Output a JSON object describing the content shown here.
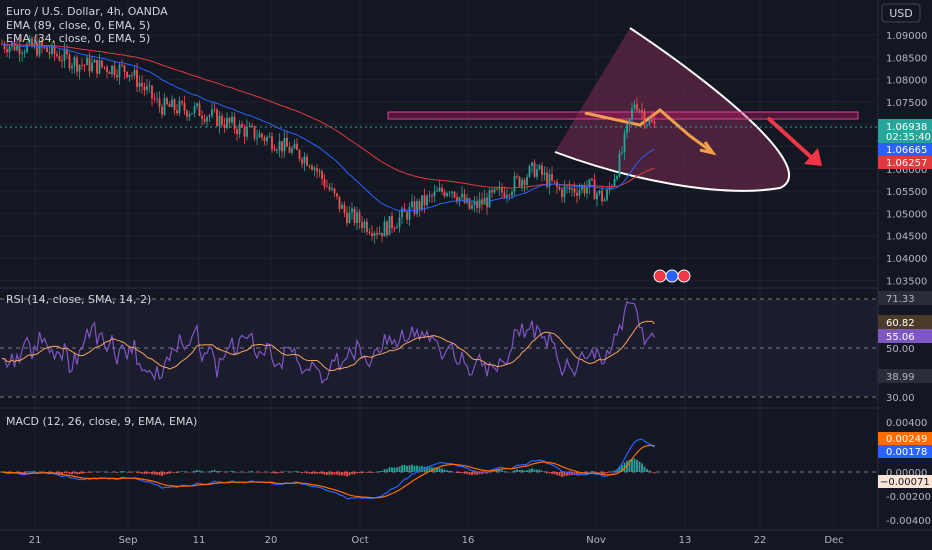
{
  "colors": {
    "background": "#131722",
    "grid": "#1e222d",
    "candle_up": "#26a69a",
    "candle_down": "#ef5350",
    "ema_89": "#e0393e",
    "ema_34": "#2962ff",
    "rsi_line": "#7e57c2",
    "rsi_ma": "#f7a35c",
    "macd_line": "#2962ff",
    "signal_line": "#ff6d00",
    "zone": "#c2185b",
    "arrow_orange": "#f0a04b",
    "arrow_red": "#f23645"
  },
  "header": {
    "symbol": "Euro / U.S. Dollar, 4h, OANDA",
    "ema89": "EMA (89, close, 0, EMA, 5)",
    "ema34": "EMA (34, close, 0, EMA, 5)",
    "currency_button": "USD"
  },
  "price_axis": {
    "ticks": [
      "1.09000",
      "1.08500",
      "1.08000",
      "1.07500",
      "1.07000",
      "1.06500",
      "1.06000",
      "1.05500",
      "1.05000",
      "1.04500",
      "1.04000",
      "1.03500"
    ],
    "last_price": "1.06938",
    "countdown": "02:35:40",
    "ema34_value": "1.06665",
    "ema89_value": "1.06257"
  },
  "rsi_panel": {
    "title": "RSI (14, close, SMA, 14, 2)",
    "ticks": [
      "71.33",
      "50.00",
      "38.99",
      "30.00"
    ],
    "rsi_ma_value": "60.82",
    "rsi_value": "55.06"
  },
  "macd_panel": {
    "title": "MACD (12, 26, close, 9, EMA, EMA)",
    "ticks": [
      "0.00400",
      "0.00000",
      "-0.00200",
      "-0.00400"
    ],
    "signal_value": "0.00249",
    "macd_value": "0.00178",
    "hist_value": "−0.00071"
  },
  "time_axis": {
    "labels": [
      "21",
      "Sep",
      "11",
      "20",
      "Oct",
      "16",
      "Nov",
      "13",
      "22",
      "Dec"
    ]
  },
  "chart_data": [
    {
      "type": "candlestick",
      "title": "Euro / U.S. Dollar, 4h, OANDA",
      "ylim": [
        1.033,
        1.095
      ],
      "x_labels": [
        "21",
        "Sep",
        "11",
        "20",
        "Oct",
        "16",
        "Nov",
        "13",
        "22",
        "Dec"
      ],
      "close_path": [
        {
          "x": "21",
          "y": 1.088
        },
        {
          "x": "Sep",
          "y": 1.082
        },
        {
          "x": "11",
          "y": 1.073
        },
        {
          "x": "20",
          "y": 1.066
        },
        {
          "x": "Oct",
          "y": 1.047
        },
        {
          "x": "16",
          "y": 1.053
        },
        {
          "x": "Nov",
          "y": 1.06
        },
        {
          "x": "Nov+",
          "y": 1.0755
        },
        {
          "x": "last",
          "y": 1.06938
        }
      ],
      "series": [
        {
          "name": "EMA (89, close, 0, EMA, 5)",
          "last": 1.06257
        },
        {
          "name": "EMA (34, close, 0, EMA, 5)",
          "last": 1.06665
        }
      ],
      "annotations": [
        "resistance zone ~1.0725",
        "orange zigzag arrow down",
        "red arrow down"
      ]
    },
    {
      "type": "line",
      "title": "RSI (14, close, SMA, 14, 2)",
      "ylim": [
        28,
        75
      ],
      "levels": [
        71.33,
        50.0,
        38.99,
        30.0
      ],
      "series": [
        {
          "name": "RSI",
          "last": 55.06
        },
        {
          "name": "RSI-based MA",
          "last": 60.82
        }
      ]
    },
    {
      "type": "line",
      "title": "MACD (12, 26, close, 9, EMA, EMA)",
      "ylim": [
        -0.0045,
        0.0045
      ],
      "series": [
        {
          "name": "MACD",
          "last": 0.00178
        },
        {
          "name": "Signal",
          "last": 0.00249
        },
        {
          "name": "Histogram",
          "last": -0.00071
        }
      ]
    }
  ]
}
